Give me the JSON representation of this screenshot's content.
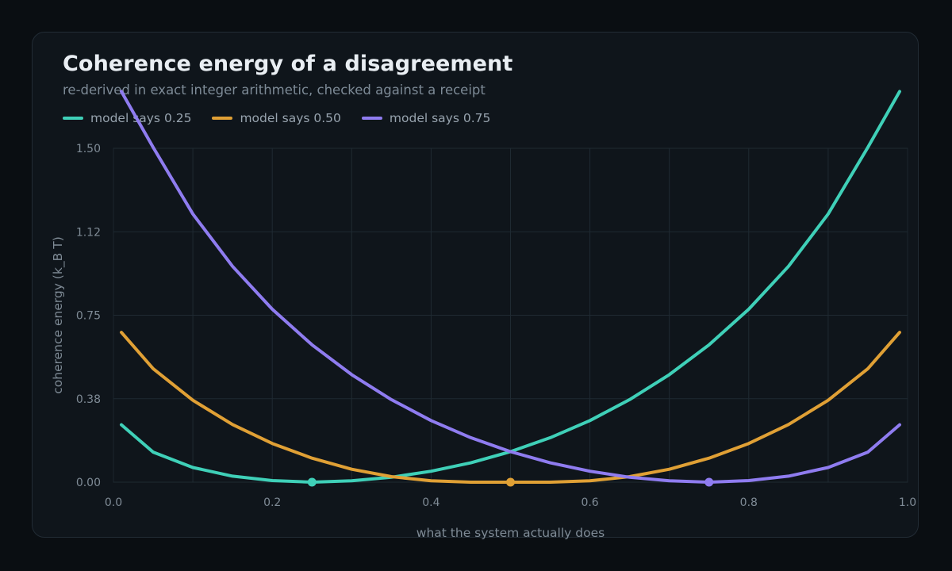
{
  "title": "Coherence energy of a disagreement",
  "subtitle": "re-derived in exact integer arithmetic, checked against a receipt",
  "colors": {
    "background": "#0a0e12",
    "card": "#0f151b",
    "grid": "#1f2a32",
    "series": [
      "#3fd0b8",
      "#e0a035",
      "#8f7cf0"
    ]
  },
  "chart_data": {
    "type": "line",
    "title": "Coherence energy of a disagreement",
    "subtitle": "re-derived in exact integer arithmetic, checked against a receipt",
    "xlabel": "what the system actually does",
    "ylabel": "coherence energy  (k_B T)",
    "xlim": [
      0.0,
      1.0
    ],
    "ylim": [
      0.0,
      1.5
    ],
    "xticks": [
      "0.0",
      "0.2",
      "0.4",
      "0.6",
      "0.8",
      "1.0"
    ],
    "xtick_values": [
      0.0,
      0.2,
      0.4,
      0.6,
      0.8,
      1.0
    ],
    "yticks": [
      "0.00",
      "0.38",
      "0.75",
      "1.12",
      "1.50"
    ],
    "ytick_values": [
      0.0,
      0.375,
      0.75,
      1.125,
      1.5
    ],
    "grid": true,
    "legend": "top-left",
    "x": [
      0.01,
      0.05,
      0.1,
      0.15,
      0.2,
      0.25,
      0.3,
      0.35,
      0.4,
      0.45,
      0.5,
      0.55,
      0.6,
      0.65,
      0.7,
      0.75,
      0.8,
      0.85,
      0.9,
      0.95,
      0.99
    ],
    "series": [
      {
        "name": "model says 0.25",
        "marker_x": 0.25,
        "values": [
          0.258,
          0.135,
          0.066,
          0.027,
          0.007,
          0.0,
          0.006,
          0.022,
          0.049,
          0.087,
          0.137,
          0.2,
          0.277,
          0.371,
          0.483,
          0.617,
          0.777,
          0.97,
          1.205,
          1.504,
          1.755
        ]
      },
      {
        "name": "model says 0.50",
        "marker_x": 0.5,
        "values": [
          0.673,
          0.51,
          0.368,
          0.259,
          0.174,
          0.108,
          0.058,
          0.025,
          0.006,
          0.0,
          0.0,
          0.0,
          0.006,
          0.025,
          0.058,
          0.108,
          0.174,
          0.259,
          0.368,
          0.51,
          0.673
        ]
      },
      {
        "name": "model says 0.75",
        "marker_x": 0.75,
        "values": [
          1.755,
          1.504,
          1.205,
          0.97,
          0.777,
          0.617,
          0.483,
          0.371,
          0.277,
          0.2,
          0.137,
          0.087,
          0.049,
          0.022,
          0.006,
          0.0,
          0.007,
          0.027,
          0.066,
          0.135,
          0.258
        ]
      }
    ]
  }
}
